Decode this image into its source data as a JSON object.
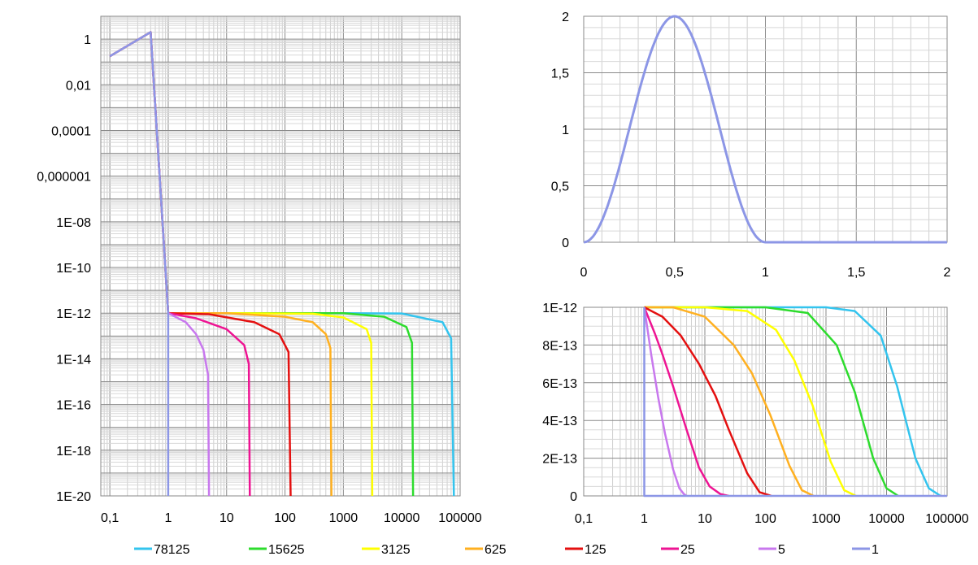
{
  "colors": {
    "78125": "#33c4ee",
    "15625": "#2ddc2d",
    "3125": "#ffff00",
    "625": "#ffb020",
    "125": "#e41010",
    "25": "#ee1493",
    "5": "#c878ee",
    "1": "#8c96e6"
  },
  "legend": [
    "78125",
    "15625",
    "3125",
    "625",
    "125",
    "25",
    "5",
    "1"
  ],
  "chart_data": [
    {
      "type": "line",
      "title": "",
      "xscale": "log",
      "yscale": "log",
      "xlim": [
        0.07,
        100000
      ],
      "ylim": [
        1e-20,
        10
      ],
      "x_tick_labels": [
        "0,1",
        "1",
        "10",
        "100",
        "1000",
        "10000",
        "100000"
      ],
      "y_tick_labels": [
        "1",
        "0,01",
        "0,0001",
        "0,000001",
        "1E-08",
        "1E-10",
        "1E-12",
        "1E-14",
        "1E-16",
        "1E-18",
        "1E-20"
      ],
      "grid": true,
      "series": [
        {
          "name": "78125",
          "x": [
            0.1,
            0.5,
            1,
            1,
            10,
            1000,
            10000,
            50000,
            70000,
            78125,
            78125
          ],
          "y": [
            0.178,
            2,
            1e-12,
            1e-12,
            1e-12,
            1e-12,
            9.7e-13,
            4e-13,
            8e-14,
            1e-20,
            1e-20
          ]
        },
        {
          "name": "15625",
          "x": [
            0.1,
            0.5,
            1,
            1,
            10,
            1000,
            5000,
            12000,
            15000,
            15625
          ],
          "y": [
            0.178,
            2,
            1e-12,
            1e-12,
            1e-12,
            1e-12,
            7e-13,
            2.5e-13,
            5e-14,
            1e-20
          ]
        },
        {
          "name": "3125",
          "x": [
            0.1,
            0.5,
            1,
            1,
            10,
            300,
            1000,
            2500,
            3000,
            3125
          ],
          "y": [
            0.178,
            2,
            1e-12,
            1e-12,
            1e-12,
            9.5e-13,
            6.5e-13,
            2e-13,
            5e-14,
            1e-20
          ]
        },
        {
          "name": "625",
          "x": [
            0.1,
            0.5,
            1,
            1,
            10,
            100,
            300,
            500,
            600,
            625
          ],
          "y": [
            0.178,
            2,
            1e-12,
            1e-12,
            1e-12,
            7e-13,
            4e-13,
            1.2e-13,
            3e-14,
            1e-20
          ]
        },
        {
          "name": "125",
          "x": [
            0.1,
            0.5,
            1,
            1,
            5,
            30,
            80,
            115,
            125
          ],
          "y": [
            0.178,
            2,
            1e-12,
            1e-12,
            9e-13,
            4e-13,
            1.2e-13,
            2e-14,
            1e-20
          ]
        },
        {
          "name": "25",
          "x": [
            0.1,
            0.5,
            1,
            1,
            3,
            10,
            20,
            24,
            25
          ],
          "y": [
            0.178,
            2,
            1e-12,
            1e-12,
            6e-13,
            2e-13,
            4e-14,
            6e-15,
            1e-20
          ]
        },
        {
          "name": "5",
          "x": [
            0.1,
            0.5,
            1,
            1,
            2,
            3,
            4,
            4.8,
            5
          ],
          "y": [
            0.178,
            2,
            1e-12,
            1e-12,
            4e-13,
            1.2e-13,
            2.5e-14,
            2e-15,
            1e-20
          ]
        },
        {
          "name": "1",
          "x": [
            0.1,
            0.5,
            1,
            1
          ],
          "y": [
            0.178,
            2,
            1e-12,
            1e-20
          ]
        }
      ]
    },
    {
      "type": "line",
      "title": "",
      "xscale": "linear",
      "yscale": "linear",
      "xlim": [
        0,
        2
      ],
      "ylim": [
        0,
        2
      ],
      "x_tick_labels": [
        "0",
        "0,5",
        "1",
        "1,5",
        "2"
      ],
      "y_tick_labels": [
        "0",
        "0,5",
        "1",
        "1,5",
        "2"
      ],
      "grid": true,
      "series": [
        {
          "name": "1",
          "function": "2*sin(pi*x)^2 for 0<=x<=1, else 0",
          "x": [
            0,
            0.1,
            0.2,
            0.3,
            0.4,
            0.5,
            0.6,
            0.7,
            0.8,
            0.9,
            1,
            2
          ],
          "y": [
            0,
            0.19,
            0.69,
            1.31,
            1.81,
            2,
            1.81,
            1.31,
            0.69,
            0.19,
            0,
            0
          ]
        }
      ]
    },
    {
      "type": "line",
      "title": "",
      "xscale": "log",
      "yscale": "linear",
      "xlim": [
        0.1,
        100000
      ],
      "ylim": [
        0,
        1e-12
      ],
      "x_tick_labels": [
        "0,1",
        "1",
        "10",
        "100",
        "1000",
        "10000",
        "100000"
      ],
      "y_tick_labels": [
        "0",
        "2E-13",
        "4E-13",
        "6E-13",
        "8E-13",
        "1E-12"
      ],
      "grid": true,
      "series": [
        {
          "name": "78125",
          "x": [
            1,
            10,
            100,
            1000,
            3000,
            8000,
            15000,
            30000,
            50000,
            78125
          ],
          "y": [
            1e-12,
            1e-12,
            1e-12,
            1e-12,
            9.8e-13,
            8.5e-13,
            5.8e-13,
            2e-13,
            4e-14,
            0
          ]
        },
        {
          "name": "15625",
          "x": [
            1,
            10,
            100,
            500,
            1500,
            3000,
            6000,
            10000,
            15625
          ],
          "y": [
            1e-12,
            1e-12,
            1e-12,
            9.7e-13,
            8e-13,
            5.5e-13,
            2e-13,
            4e-14,
            0
          ]
        },
        {
          "name": "3125",
          "x": [
            1,
            10,
            50,
            150,
            300,
            600,
            1200,
            2000,
            3125
          ],
          "y": [
            1e-12,
            1e-12,
            9.8e-13,
            8.8e-13,
            7.2e-13,
            4.8e-13,
            1.8e-13,
            3e-14,
            0
          ]
        },
        {
          "name": "625",
          "x": [
            1,
            3,
            10,
            30,
            60,
            120,
            250,
            400,
            625
          ],
          "y": [
            1e-12,
            1e-12,
            9.5e-13,
            8e-13,
            6.5e-13,
            4.3e-13,
            1.6e-13,
            3e-14,
            0
          ]
        },
        {
          "name": "125",
          "x": [
            1,
            2,
            4,
            8,
            15,
            25,
            50,
            80,
            125
          ],
          "y": [
            1e-12,
            9.5e-13,
            8.5e-13,
            7e-13,
            5.3e-13,
            3.5e-13,
            1.2e-13,
            2e-14,
            0
          ]
        },
        {
          "name": "25",
          "x": [
            1,
            1.5,
            2,
            3,
            5,
            8,
            12,
            18,
            25
          ],
          "y": [
            1e-12,
            8.6e-13,
            7.5e-13,
            5.8e-13,
            3.5e-13,
            1.5e-13,
            5e-14,
            1e-14,
            0
          ]
        },
        {
          "name": "5",
          "x": [
            1,
            1.3,
            1.7,
            2.2,
            3,
            3.8,
            4.5,
            5
          ],
          "y": [
            1e-12,
            7.5e-13,
            5.2e-13,
            3.3e-13,
            1.4e-13,
            4e-14,
            1e-14,
            0
          ]
        },
        {
          "name": "1",
          "x": [
            1,
            1,
            100000
          ],
          "y": [
            1e-12,
            0,
            0
          ]
        }
      ]
    }
  ]
}
